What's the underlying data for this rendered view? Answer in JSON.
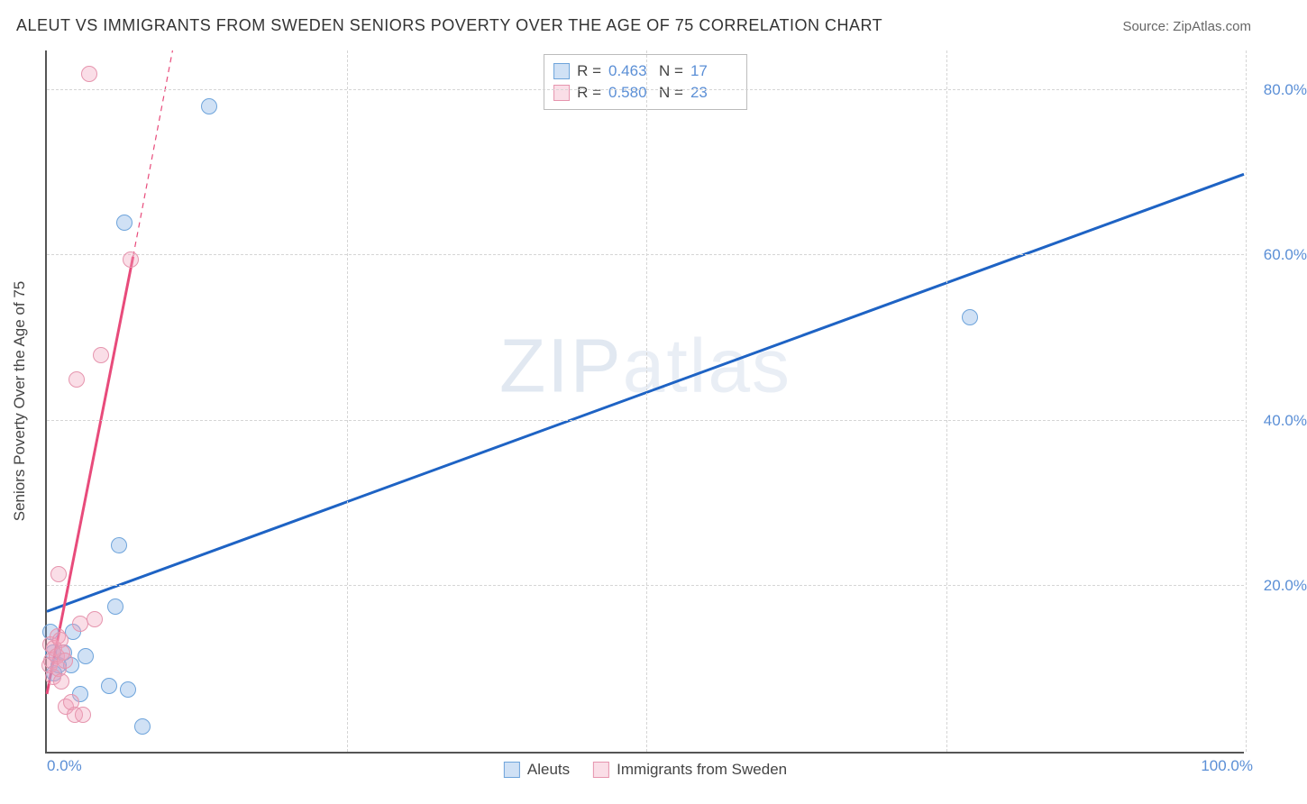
{
  "title": "ALEUT VS IMMIGRANTS FROM SWEDEN SENIORS POVERTY OVER THE AGE OF 75 CORRELATION CHART",
  "source": "Source: ZipAtlas.com",
  "watermark_a": "ZIP",
  "watermark_b": "atlas",
  "chart": {
    "type": "scatter",
    "xlim": [
      0,
      100
    ],
    "ylim": [
      0,
      85
    ],
    "xticks": [
      {
        "v": 0,
        "label": "0.0%"
      },
      {
        "v": 100,
        "label": "100.0%"
      }
    ],
    "yticks": [
      {
        "v": 20,
        "label": "20.0%"
      },
      {
        "v": 40,
        "label": "40.0%"
      },
      {
        "v": 60,
        "label": "60.0%"
      },
      {
        "v": 80,
        "label": "80.0%"
      }
    ],
    "vgrid": [
      25,
      50,
      75,
      100
    ],
    "y_axis_title": "Seniors Poverty Over the Age of 75",
    "background_color": "#ffffff",
    "grid_color": "#d5d5d5",
    "marker_radius": 9,
    "marker_stroke_width": 1.5,
    "series": [
      {
        "key": "aleuts",
        "label": "Aleuts",
        "fill": "rgba(120,170,225,0.35)",
        "stroke": "#6ea4db",
        "R": "0.463",
        "N": "17",
        "trend": {
          "x1": 0,
          "y1": 17,
          "x2": 100,
          "y2": 70,
          "stroke": "#1e63c4",
          "width": 3,
          "dash": ""
        },
        "points": [
          {
            "x": 0.3,
            "y": 14.5
          },
          {
            "x": 0.5,
            "y": 12
          },
          {
            "x": 0.6,
            "y": 9.5
          },
          {
            "x": 1.0,
            "y": 10.5
          },
          {
            "x": 1.4,
            "y": 12
          },
          {
            "x": 2.0,
            "y": 10.5
          },
          {
            "x": 2.2,
            "y": 14.5
          },
          {
            "x": 2.8,
            "y": 7
          },
          {
            "x": 3.2,
            "y": 11.5
          },
          {
            "x": 5.2,
            "y": 8
          },
          {
            "x": 6.8,
            "y": 7.5
          },
          {
            "x": 8.0,
            "y": 3
          },
          {
            "x": 5.7,
            "y": 17.5
          },
          {
            "x": 6.0,
            "y": 25
          },
          {
            "x": 6.5,
            "y": 64
          },
          {
            "x": 13.5,
            "y": 78
          },
          {
            "x": 77,
            "y": 52.5
          }
        ]
      },
      {
        "key": "sweden",
        "label": "Immigrants from Sweden",
        "fill": "rgba(240,160,185,0.35)",
        "stroke": "#e695ae",
        "R": "0.580",
        "N": "23",
        "trend": {
          "x1": 0,
          "y1": 7,
          "x2": 7.2,
          "y2": 60,
          "stroke": "#e84b7b",
          "width": 3,
          "dash": ""
        },
        "trend_ext": {
          "x1": 7.2,
          "y1": 60,
          "x2": 10.5,
          "y2": 85,
          "stroke": "#e84b7b",
          "width": 1.2,
          "dash": "6 5"
        },
        "points": [
          {
            "x": 0.2,
            "y": 10.5
          },
          {
            "x": 0.3,
            "y": 13
          },
          {
            "x": 0.4,
            "y": 11
          },
          {
            "x": 0.5,
            "y": 9
          },
          {
            "x": 0.6,
            "y": 12.5
          },
          {
            "x": 0.8,
            "y": 11.5
          },
          {
            "x": 0.9,
            "y": 14
          },
          {
            "x": 1.0,
            "y": 10
          },
          {
            "x": 1.1,
            "y": 13.5
          },
          {
            "x": 1.2,
            "y": 8.5
          },
          {
            "x": 1.3,
            "y": 12
          },
          {
            "x": 1.5,
            "y": 11
          },
          {
            "x": 1.6,
            "y": 5.5
          },
          {
            "x": 2.0,
            "y": 6
          },
          {
            "x": 2.3,
            "y": 4.5
          },
          {
            "x": 3.0,
            "y": 4.5
          },
          {
            "x": 1.0,
            "y": 21.5
          },
          {
            "x": 2.8,
            "y": 15.5
          },
          {
            "x": 4.0,
            "y": 16
          },
          {
            "x": 2.5,
            "y": 45
          },
          {
            "x": 4.5,
            "y": 48
          },
          {
            "x": 7.0,
            "y": 59.5
          },
          {
            "x": 3.5,
            "y": 82
          }
        ]
      }
    ]
  }
}
